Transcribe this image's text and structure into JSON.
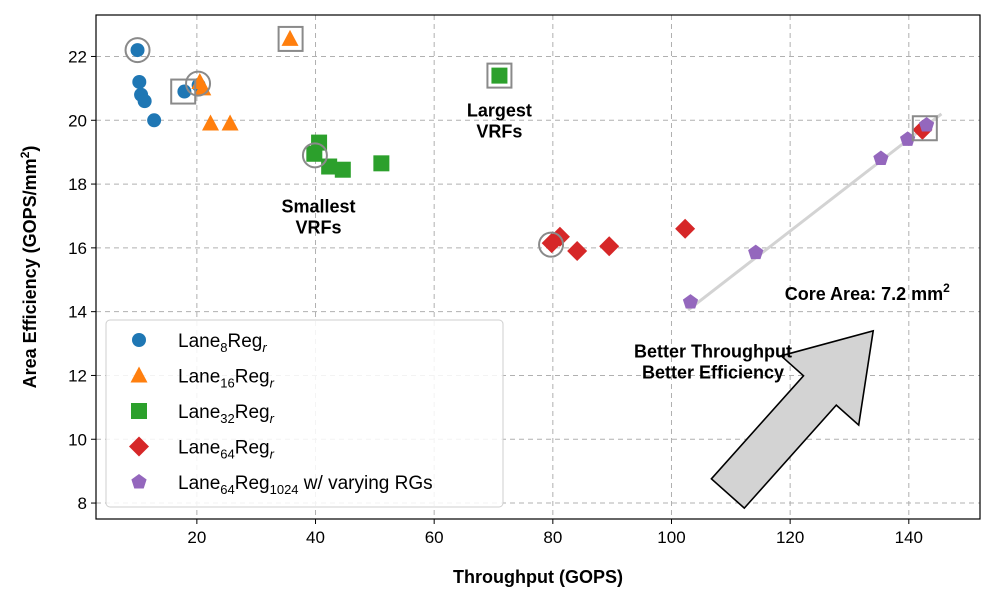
{
  "chart_data": {
    "type": "scatter",
    "xlabel": "Throughput (GOPS)",
    "ylabel": "Area Efficiency (GOPS/mm²)",
    "ylabel_parts": {
      "main": "Area Efficiency (GOPS/mm",
      "sup": "2",
      "end": ")"
    },
    "xlim": [
      3,
      152
    ],
    "ylim": [
      7.5,
      23.3
    ],
    "xticks": [
      20,
      40,
      60,
      80,
      100,
      120,
      140
    ],
    "yticks": [
      8,
      10,
      12,
      14,
      16,
      18,
      20,
      22
    ],
    "grid": true,
    "legend_position": "bottom-left",
    "series": [
      {
        "name": "Lane8Regr",
        "label_parts": {
          "base": "Lane",
          "sub": "8",
          "mid": "Reg",
          "sub2": "r",
          "tail": ""
        },
        "marker": "circle",
        "color": "#1f77b4",
        "points": [
          [
            10.0,
            22.2
          ],
          [
            10.3,
            21.2
          ],
          [
            10.6,
            20.8
          ],
          [
            11.2,
            20.6
          ],
          [
            12.8,
            20.0
          ],
          [
            17.9,
            20.9
          ],
          [
            20.3,
            21.1
          ]
        ]
      },
      {
        "name": "Lane16Regr",
        "label_parts": {
          "base": "Lane",
          "sub": "16",
          "mid": "Reg",
          "sub2": "r",
          "tail": ""
        },
        "marker": "triangle",
        "color": "#ff7f0e",
        "points": [
          [
            35.7,
            22.55
          ],
          [
            20.5,
            21.2
          ],
          [
            21.0,
            21.0
          ],
          [
            22.3,
            19.9
          ],
          [
            25.6,
            19.9
          ]
        ]
      },
      {
        "name": "Lane32Regr",
        "label_parts": {
          "base": "Lane",
          "sub": "32",
          "mid": "Reg",
          "sub2": "r",
          "tail": ""
        },
        "marker": "square",
        "color": "#2ca02c",
        "points": [
          [
            71.0,
            21.4
          ],
          [
            40.6,
            19.3
          ],
          [
            39.8,
            18.95
          ],
          [
            42.3,
            18.55
          ],
          [
            44.6,
            18.45
          ],
          [
            51.1,
            18.65
          ]
        ]
      },
      {
        "name": "Lane64Regr",
        "label_parts": {
          "base": "Lane",
          "sub": "64",
          "mid": "Reg",
          "sub2": "r",
          "tail": ""
        },
        "marker": "diamond",
        "color": "#d62728",
        "points": [
          [
            79.8,
            16.15
          ],
          [
            81.2,
            16.35
          ],
          [
            84.1,
            15.9
          ],
          [
            89.5,
            16.05
          ],
          [
            102.3,
            16.6
          ],
          [
            142.3,
            19.7
          ]
        ]
      },
      {
        "name": "Lane64Reg1024 w/ varying RGs",
        "label_parts": {
          "base": "Lane",
          "sub": "64",
          "mid": "Reg",
          "sub2": "1024",
          "tail": " w/ varying RGs"
        },
        "marker": "pentagon",
        "color": "#9467bd",
        "points": [
          [
            103.2,
            14.3
          ],
          [
            114.2,
            15.85
          ],
          [
            135.3,
            18.8
          ],
          [
            139.8,
            19.4
          ],
          [
            143.0,
            19.85
          ]
        ]
      }
    ],
    "highlight_circles": [
      [
        10.0,
        22.2
      ],
      [
        20.2,
        21.15
      ],
      [
        39.9,
        18.9
      ],
      [
        79.7,
        16.1
      ]
    ],
    "highlight_squares": [
      [
        35.8,
        22.55
      ],
      [
        17.7,
        20.9
      ],
      [
        71.0,
        21.4
      ],
      [
        142.7,
        19.75
      ]
    ],
    "trend_line": {
      "from": [
        102.8,
        14.05
      ],
      "to": [
        145.5,
        20.2
      ]
    },
    "annotations": [
      {
        "lines": [
          "Largest",
          "VRFs"
        ],
        "at": [
          71.0,
          20.3
        ]
      },
      {
        "lines": [
          "Smallest",
          "VRFs"
        ],
        "at": [
          40.5,
          17.3
        ]
      },
      {
        "lines": [
          "Better Throughput",
          "Better Efficiency"
        ],
        "at": [
          107.0,
          12.75
        ]
      },
      {
        "lines": [
          "Core Area: 7.2 mm"
        ],
        "sup": "2",
        "at": [
          133.0,
          14.55
        ]
      }
    ],
    "big_arrow": {
      "from": [
        109.5,
        8.3
      ],
      "to": [
        134.0,
        13.4
      ]
    }
  }
}
